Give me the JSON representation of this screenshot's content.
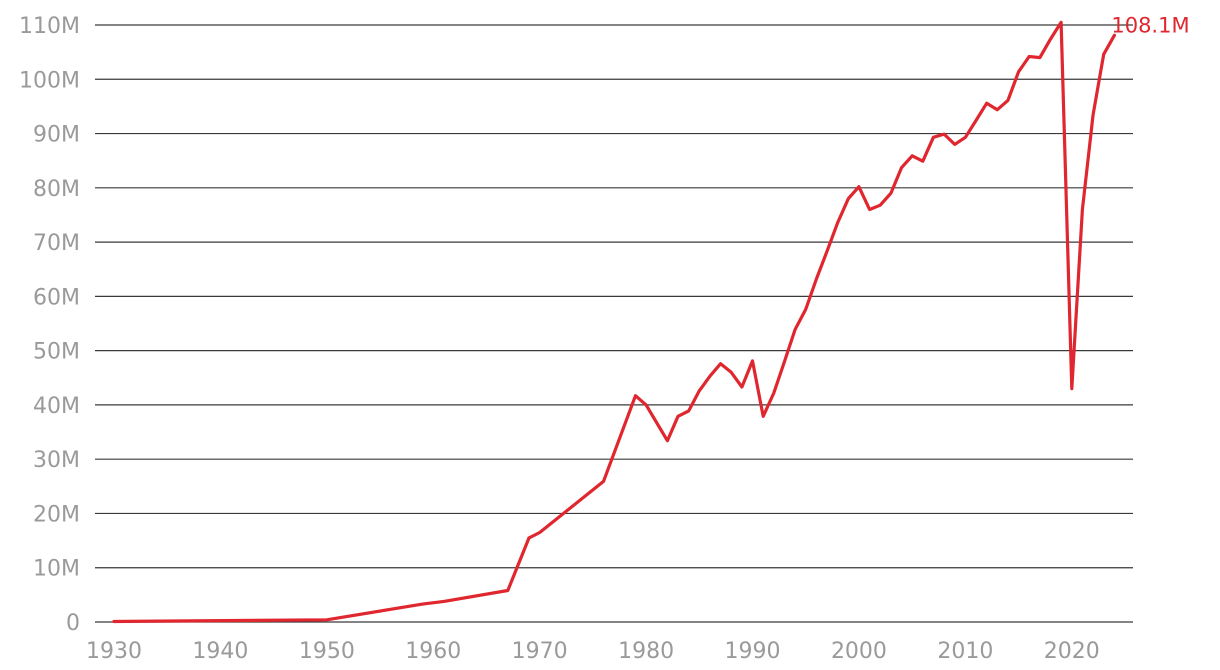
{
  "chart_data": {
    "type": "line",
    "title": "",
    "xlabel": "",
    "ylabel": "",
    "xlim": [
      1930,
      2025
    ],
    "ylim": [
      0,
      110
    ],
    "grid": true,
    "line_color": "#e0262e",
    "x_ticks": [
      1930,
      1940,
      1950,
      1960,
      1970,
      1980,
      1990,
      2000,
      2010,
      2020
    ],
    "x_tick_labels": [
      "1930",
      "1940",
      "1950",
      "1960",
      "1970",
      "1980",
      "1990",
      "2000",
      "2010",
      "2020"
    ],
    "y_ticks": [
      0,
      10,
      20,
      30,
      40,
      50,
      60,
      70,
      80,
      90,
      100,
      110
    ],
    "y_tick_labels": [
      "0",
      "10M",
      "20M",
      "30M",
      "40M",
      "50M",
      "60M",
      "70M",
      "80M",
      "90M",
      "100M",
      "110M"
    ],
    "series": [
      {
        "x": [
          1930,
          1950,
          1959,
          1961,
          1967,
          1969,
          1970,
          1976,
          1979,
          1980,
          1982,
          1983,
          1984,
          1985,
          1986,
          1987,
          1988,
          1989,
          1990,
          1991,
          1992,
          1993,
          1994,
          1995,
          1996,
          1997,
          1998,
          1999,
          2000,
          2001,
          2002,
          2003,
          2004,
          2005,
          2006,
          2007,
          2008,
          2009,
          2010,
          2011,
          2012,
          2013,
          2014,
          2015,
          2016,
          2017,
          2018,
          2019,
          2020,
          2021,
          2022,
          2023,
          2024
        ],
        "y": [
          0.1,
          0.4,
          3.3,
          3.8,
          5.8,
          15.5,
          16.5,
          25.9,
          41.7,
          40.0,
          33.4,
          37.9,
          38.9,
          42.6,
          45.3,
          47.6,
          46.0,
          43.3,
          48.1,
          37.9,
          42.2,
          48.0,
          53.9,
          57.6,
          63.2,
          68.3,
          73.6,
          78.0,
          80.2,
          76.0,
          76.8,
          79.0,
          83.7,
          85.9,
          84.9,
          89.3,
          89.9,
          88.0,
          89.3,
          92.4,
          95.6,
          94.4,
          96.1,
          101.4,
          104.2,
          104.0,
          107.4,
          110.5,
          43.0,
          76.0,
          93.5,
          104.6,
          108.1
        ]
      }
    ],
    "end_label": "108.1M"
  }
}
